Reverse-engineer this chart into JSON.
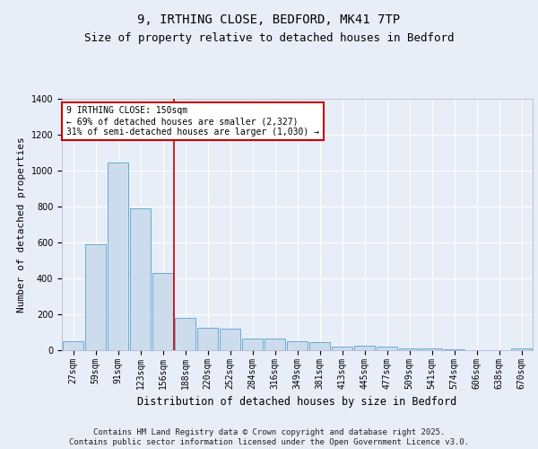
{
  "title": "9, IRTHING CLOSE, BEDFORD, MK41 7TP",
  "subtitle": "Size of property relative to detached houses in Bedford",
  "xlabel": "Distribution of detached houses by size in Bedford",
  "ylabel": "Number of detached properties",
  "categories": [
    "27sqm",
    "59sqm",
    "91sqm",
    "123sqm",
    "156sqm",
    "188sqm",
    "220sqm",
    "252sqm",
    "284sqm",
    "316sqm",
    "349sqm",
    "381sqm",
    "413sqm",
    "445sqm",
    "477sqm",
    "509sqm",
    "541sqm",
    "574sqm",
    "606sqm",
    "638sqm",
    "670sqm"
  ],
  "values": [
    50,
    590,
    1045,
    790,
    430,
    180,
    125,
    120,
    65,
    65,
    48,
    45,
    20,
    25,
    18,
    10,
    8,
    6,
    2,
    2,
    10
  ],
  "bar_color": "#ccdcec",
  "bar_edge_color": "#6aaad4",
  "red_line_x": 4.5,
  "annotation_text": "9 IRTHING CLOSE: 150sqm\n← 69% of detached houses are smaller (2,327)\n31% of semi-detached houses are larger (1,030) →",
  "annotation_box_color": "#ffffff",
  "annotation_box_edge": "#cc0000",
  "ylim": [
    0,
    1400
  ],
  "yticks": [
    0,
    200,
    400,
    600,
    800,
    1000,
    1200,
    1400
  ],
  "bg_color": "#e8eef8",
  "plot_bg_color": "#e8eef8",
  "footer1": "Contains HM Land Registry data © Crown copyright and database right 2025.",
  "footer2": "Contains public sector information licensed under the Open Government Licence v3.0.",
  "red_line_color": "#cc0000",
  "grid_color": "#ffffff",
  "title_fontsize": 10,
  "subtitle_fontsize": 9,
  "axis_label_fontsize": 8,
  "tick_fontsize": 7,
  "annotation_fontsize": 7,
  "footer_fontsize": 6.5
}
